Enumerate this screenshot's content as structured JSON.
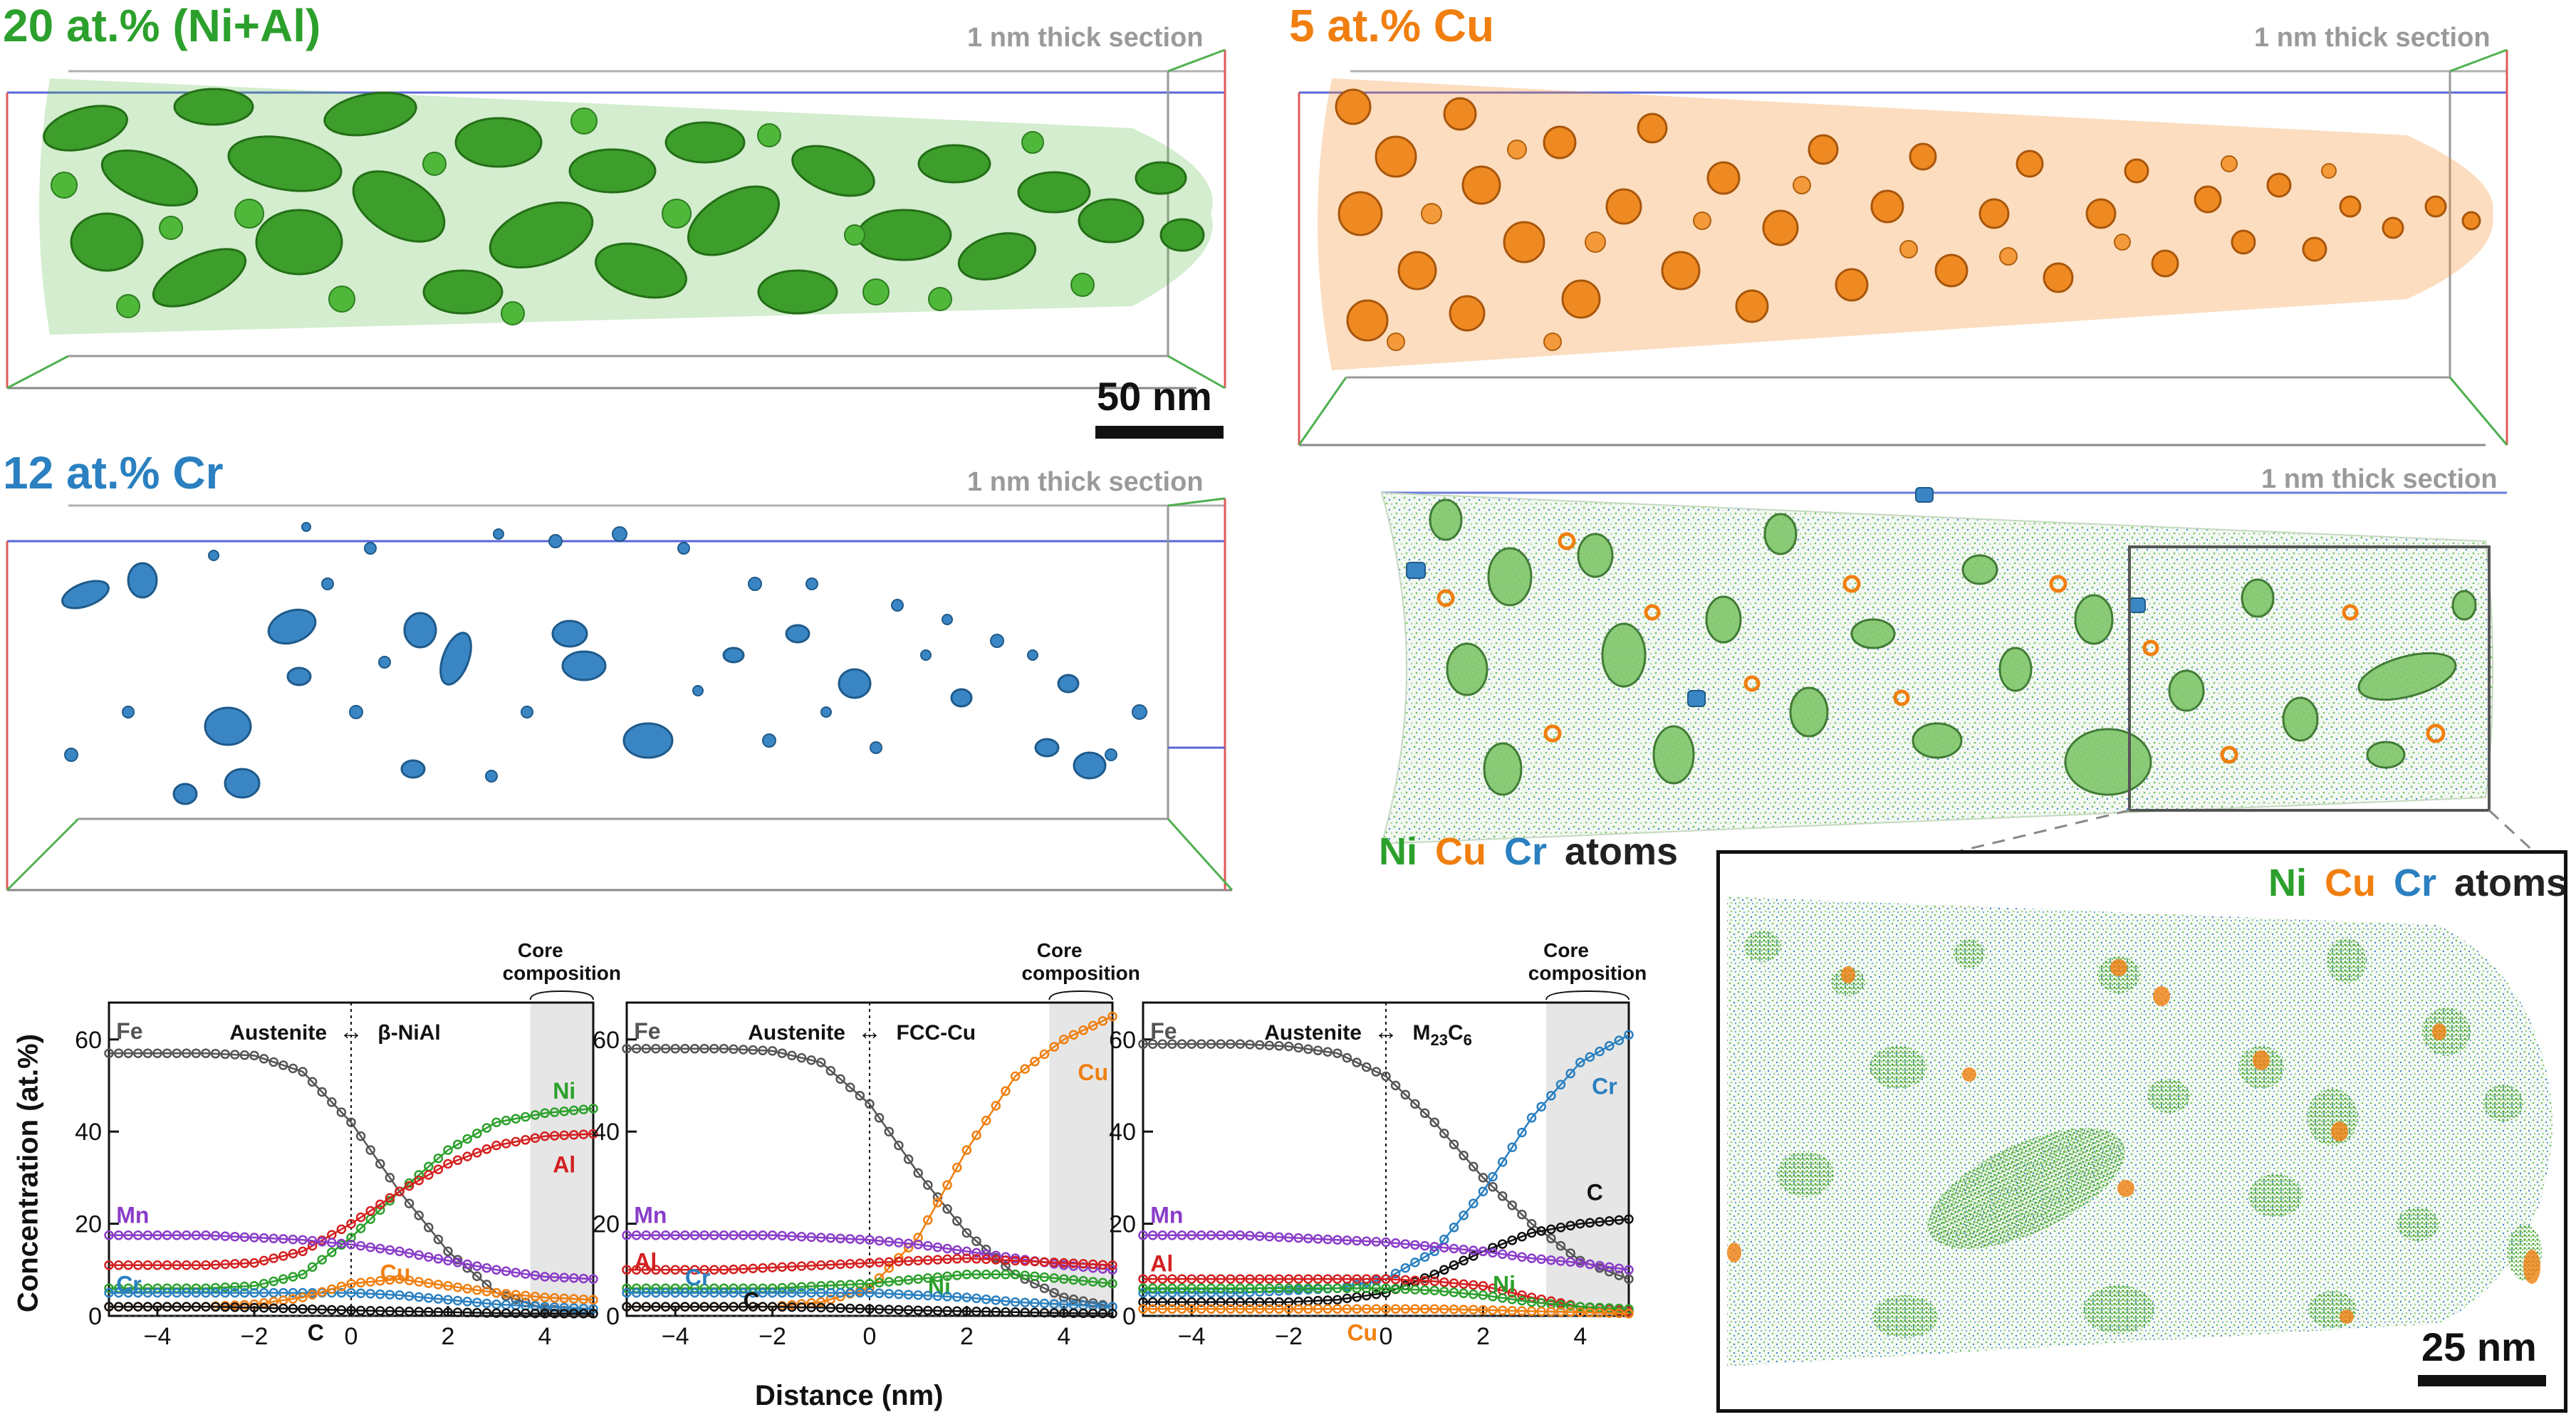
{
  "colors": {
    "ni": "#2ca02c",
    "cu": "#f07f10",
    "cr": "#2a80c0",
    "fe": "#555555",
    "al": "#d42020",
    "mn": "#8a3cc8",
    "c": "#111111"
  },
  "panels": {
    "niAl": {
      "title": "20 at.% (Ni+Al)",
      "section": "1 nm thick section",
      "scalebar": "50 nm"
    },
    "cu": {
      "title": "5 at.% Cu",
      "section": "1 nm thick section"
    },
    "cr": {
      "title": "12 at.% Cr",
      "section": "1 nm thick section"
    },
    "atoms": {
      "section": "1 nm thick section",
      "legend": [
        "Ni",
        "Cu",
        "Cr",
        "atoms"
      ]
    },
    "inset": {
      "legend": [
        "Ni",
        "Cu",
        "Cr",
        "atoms"
      ],
      "scalebar": "25 nm"
    }
  },
  "profiles": {
    "ylabel": "Concentration (at.%)",
    "xlabel": "Distance (nm)"
  },
  "chart_data": [
    {
      "type": "line",
      "header_left": "Austenite",
      "header_right": "β-NiAl",
      "core_label": "Core composition",
      "xlim": [
        -5,
        5
      ],
      "ylim": [
        0,
        68
      ],
      "xticks": [
        -4,
        -2,
        0,
        2,
        4
      ],
      "yticks": [
        0,
        20,
        40,
        60
      ],
      "x": [
        -5,
        -4,
        -3,
        -2,
        -1,
        0,
        1,
        2,
        3,
        4,
        5
      ],
      "series": [
        {
          "name": "Fe",
          "values": [
            57,
            57,
            57,
            56.5,
            53,
            42,
            27,
            14,
            5,
            1.5,
            0.5
          ]
        },
        {
          "name": "Ni",
          "values": [
            6,
            6,
            6,
            6.5,
            9,
            17,
            27,
            36,
            42,
            44,
            45
          ]
        },
        {
          "name": "Al",
          "values": [
            11,
            11,
            11,
            11.5,
            14,
            20,
            27,
            33,
            37,
            39,
            39.5
          ]
        },
        {
          "name": "Mn",
          "values": [
            17.5,
            17.5,
            17.5,
            17,
            16.5,
            15.5,
            14,
            12,
            10,
            8.5,
            8
          ]
        },
        {
          "name": "Cr",
          "values": [
            5,
            5,
            5,
            5,
            5,
            5,
            4.5,
            3.5,
            2.5,
            2,
            1.5
          ]
        },
        {
          "name": "Cu",
          "values": [
            2,
            2,
            2,
            2.5,
            4,
            7,
            8,
            6.5,
            5,
            4,
            3.5
          ]
        },
        {
          "name": "C",
          "values": [
            2,
            2,
            2,
            1.8,
            1.5,
            1.2,
            1,
            0.8,
            0.6,
            0.5,
            0.5
          ]
        }
      ]
    },
    {
      "type": "line",
      "header_left": "Austenite",
      "header_right": "FCC-Cu",
      "core_label": "Core composition",
      "xlim": [
        -5,
        5
      ],
      "ylim": [
        0,
        68
      ],
      "xticks": [
        -4,
        -2,
        0,
        2,
        4
      ],
      "yticks": [
        0,
        20,
        40,
        60
      ],
      "x": [
        -5,
        -4,
        -3,
        -2,
        -1,
        0,
        1,
        2,
        3,
        4,
        5
      ],
      "series": [
        {
          "name": "Fe",
          "values": [
            58,
            58,
            58,
            57.5,
            55,
            46,
            31,
            18,
            9,
            4,
            2
          ]
        },
        {
          "name": "Cu",
          "values": [
            2,
            2,
            2,
            2,
            3,
            6,
            17,
            36,
            52,
            60,
            65
          ]
        },
        {
          "name": "Mn",
          "values": [
            17.5,
            17.5,
            17.5,
            17.5,
            17,
            16.5,
            15.5,
            14,
            12.5,
            11,
            10
          ]
        },
        {
          "name": "Al",
          "values": [
            10,
            10,
            10,
            10.5,
            11,
            11.5,
            12,
            12.5,
            12,
            11.5,
            11
          ]
        },
        {
          "name": "Ni",
          "values": [
            6,
            6,
            6,
            6,
            6.5,
            7,
            8,
            9,
            9,
            8,
            7
          ]
        },
        {
          "name": "Cr",
          "values": [
            5,
            5,
            5,
            5,
            5,
            5,
            4.5,
            4,
            3,
            2.5,
            2
          ]
        },
        {
          "name": "C",
          "values": [
            2,
            2,
            2,
            2,
            1.8,
            1.5,
            1.2,
            1,
            0.8,
            0.6,
            0.5
          ]
        }
      ]
    },
    {
      "type": "line",
      "header_left": "Austenite",
      "header_right": "M",
      "header_right_sub": "23",
      "header_right_mid": "C",
      "header_right_sub2": "6",
      "core_label": "Core composition",
      "xlim": [
        -5,
        5
      ],
      "ylim": [
        0,
        68
      ],
      "xticks": [
        -4,
        -2,
        0,
        2,
        4
      ],
      "yticks": [
        0,
        20,
        40,
        60
      ],
      "x": [
        -5,
        -4,
        -3,
        -2,
        -1,
        0,
        1,
        2,
        3,
        4,
        5
      ],
      "series": [
        {
          "name": "Fe",
          "values": [
            59,
            59,
            59,
            58.5,
            57,
            52,
            42,
            30,
            20,
            12,
            8
          ]
        },
        {
          "name": "Cr",
          "values": [
            5,
            5,
            5,
            5.5,
            6,
            8,
            14,
            27,
            43,
            55,
            61
          ]
        },
        {
          "name": "C",
          "values": [
            3,
            3,
            3,
            3,
            3.5,
            5,
            9,
            14,
            18,
            20,
            21
          ]
        },
        {
          "name": "Mn",
          "values": [
            17.5,
            17.5,
            17.5,
            17,
            16.5,
            16,
            15,
            14,
            12.5,
            11.5,
            10
          ]
        },
        {
          "name": "Al",
          "values": [
            8,
            8,
            8,
            8,
            8,
            8,
            7.5,
            6.5,
            4,
            2,
            1
          ]
        },
        {
          "name": "Ni",
          "values": [
            6,
            6,
            6,
            6,
            6,
            6,
            5.5,
            4.5,
            3,
            2,
            1.5
          ]
        },
        {
          "name": "Cu",
          "values": [
            1.5,
            1.5,
            1.5,
            1.5,
            1.5,
            1.5,
            1.5,
            1.3,
            1,
            0.8,
            0.5
          ]
        }
      ]
    }
  ]
}
